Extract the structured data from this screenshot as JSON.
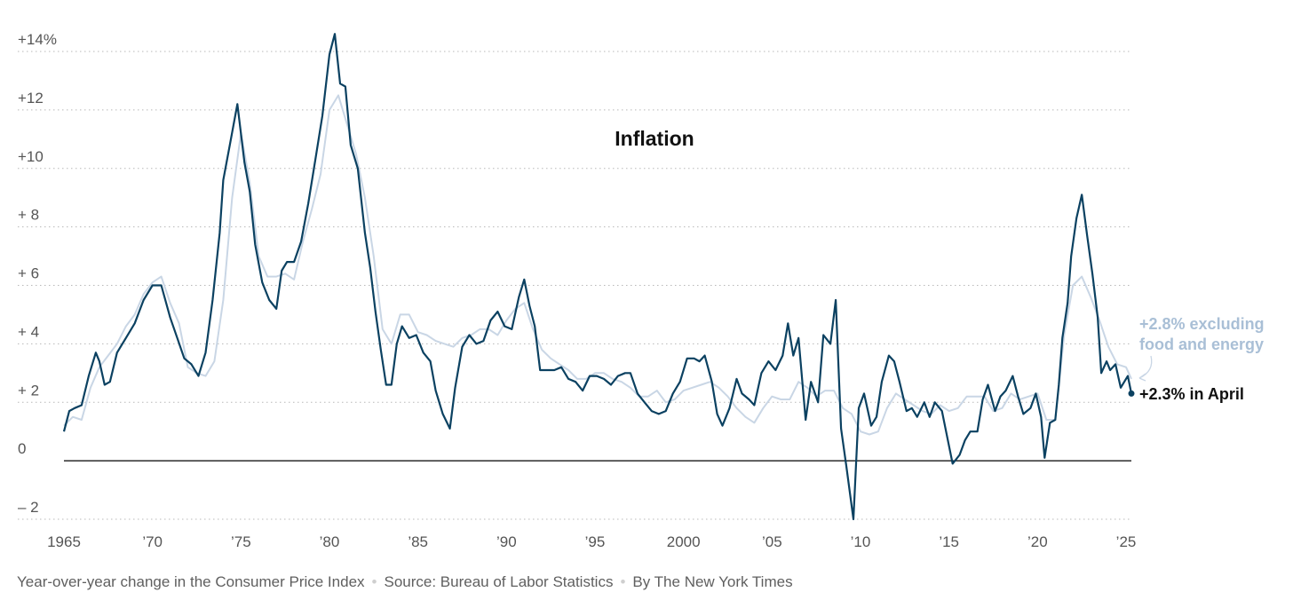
{
  "chart_data": {
    "type": "line",
    "title": "Inflation",
    "xlabel": "",
    "ylabel": "",
    "x_ticks": [
      "1965",
      "’70",
      "’75",
      "’80",
      "’85",
      "’90",
      "’95",
      "2000",
      "’05",
      "’10",
      "’15",
      "’20",
      "’25"
    ],
    "x_tick_years": [
      1965,
      1970,
      1975,
      1980,
      1985,
      1990,
      1995,
      2000,
      2005,
      2010,
      2015,
      2020,
      2025
    ],
    "xlim": [
      1965,
      2025.3
    ],
    "y_ticks": [
      {
        "value": 14,
        "label": "+14%"
      },
      {
        "value": 12,
        "label": "+12"
      },
      {
        "value": 10,
        "label": "+10"
      },
      {
        "value": 8,
        "label": "+ 8"
      },
      {
        "value": 6,
        "label": "+ 6"
      },
      {
        "value": 4,
        "label": "+ 4"
      },
      {
        "value": 2,
        "label": "+ 2"
      },
      {
        "value": 0,
        "label": "0"
      },
      {
        "value": -2,
        "label": "– 2"
      }
    ],
    "ylim": [
      -2,
      14.5
    ],
    "grid": true,
    "series": [
      {
        "name": "core",
        "color": "#c9d6e5",
        "points": [
          [
            1965.0,
            1.2
          ],
          [
            1965.5,
            1.5
          ],
          [
            1966.0,
            1.4
          ],
          [
            1966.5,
            2.5
          ],
          [
            1967.0,
            3.2
          ],
          [
            1967.5,
            3.6
          ],
          [
            1968.0,
            4.0
          ],
          [
            1968.5,
            4.6
          ],
          [
            1969.0,
            5.0
          ],
          [
            1969.5,
            5.7
          ],
          [
            1970.0,
            6.1
          ],
          [
            1970.5,
            6.3
          ],
          [
            1971.0,
            5.4
          ],
          [
            1971.5,
            4.7
          ],
          [
            1972.0,
            3.2
          ],
          [
            1972.5,
            3.0
          ],
          [
            1973.0,
            2.9
          ],
          [
            1973.5,
            3.4
          ],
          [
            1974.0,
            5.5
          ],
          [
            1974.5,
            9.0
          ],
          [
            1975.0,
            11.2
          ],
          [
            1975.5,
            9.5
          ],
          [
            1976.0,
            7.0
          ],
          [
            1976.5,
            6.3
          ],
          [
            1977.0,
            6.3
          ],
          [
            1977.5,
            6.4
          ],
          [
            1978.0,
            6.2
          ],
          [
            1978.5,
            7.5
          ],
          [
            1979.0,
            8.6
          ],
          [
            1979.5,
            9.8
          ],
          [
            1980.0,
            12.0
          ],
          [
            1980.5,
            12.5
          ],
          [
            1981.0,
            11.5
          ],
          [
            1981.5,
            10.5
          ],
          [
            1982.0,
            9.0
          ],
          [
            1982.5,
            7.0
          ],
          [
            1983.0,
            4.5
          ],
          [
            1983.5,
            4.0
          ],
          [
            1984.0,
            5.0
          ],
          [
            1984.5,
            5.0
          ],
          [
            1985.0,
            4.4
          ],
          [
            1985.5,
            4.3
          ],
          [
            1986.0,
            4.1
          ],
          [
            1986.5,
            4.0
          ],
          [
            1987.0,
            3.9
          ],
          [
            1987.5,
            4.2
          ],
          [
            1988.0,
            4.3
          ],
          [
            1988.5,
            4.5
          ],
          [
            1989.0,
            4.5
          ],
          [
            1989.5,
            4.3
          ],
          [
            1990.0,
            4.8
          ],
          [
            1990.5,
            5.2
          ],
          [
            1991.0,
            5.4
          ],
          [
            1991.5,
            4.5
          ],
          [
            1992.0,
            3.8
          ],
          [
            1992.5,
            3.5
          ],
          [
            1993.0,
            3.3
          ],
          [
            1993.5,
            3.1
          ],
          [
            1994.0,
            2.8
          ],
          [
            1994.5,
            2.8
          ],
          [
            1995.0,
            3.0
          ],
          [
            1995.5,
            3.0
          ],
          [
            1996.0,
            2.8
          ],
          [
            1996.5,
            2.7
          ],
          [
            1997.0,
            2.5
          ],
          [
            1997.5,
            2.2
          ],
          [
            1998.0,
            2.2
          ],
          [
            1998.5,
            2.4
          ],
          [
            1999.0,
            2.0
          ],
          [
            1999.5,
            2.1
          ],
          [
            2000.0,
            2.4
          ],
          [
            2000.5,
            2.5
          ],
          [
            2001.0,
            2.6
          ],
          [
            2001.5,
            2.7
          ],
          [
            2002.0,
            2.5
          ],
          [
            2002.5,
            2.2
          ],
          [
            2003.0,
            1.8
          ],
          [
            2003.5,
            1.5
          ],
          [
            2004.0,
            1.3
          ],
          [
            2004.5,
            1.8
          ],
          [
            2005.0,
            2.2
          ],
          [
            2005.5,
            2.1
          ],
          [
            2006.0,
            2.1
          ],
          [
            2006.5,
            2.7
          ],
          [
            2007.0,
            2.5
          ],
          [
            2007.5,
            2.2
          ],
          [
            2008.0,
            2.4
          ],
          [
            2008.5,
            2.4
          ],
          [
            2009.0,
            1.8
          ],
          [
            2009.5,
            1.6
          ],
          [
            2010.0,
            1.0
          ],
          [
            2010.5,
            0.9
          ],
          [
            2011.0,
            1.0
          ],
          [
            2011.5,
            1.8
          ],
          [
            2012.0,
            2.3
          ],
          [
            2012.5,
            2.1
          ],
          [
            2013.0,
            1.9
          ],
          [
            2013.5,
            1.7
          ],
          [
            2014.0,
            1.6
          ],
          [
            2014.5,
            1.9
          ],
          [
            2015.0,
            1.7
          ],
          [
            2015.5,
            1.8
          ],
          [
            2016.0,
            2.2
          ],
          [
            2016.5,
            2.2
          ],
          [
            2017.0,
            2.2
          ],
          [
            2017.5,
            1.7
          ],
          [
            2018.0,
            1.8
          ],
          [
            2018.5,
            2.3
          ],
          [
            2019.0,
            2.1
          ],
          [
            2019.5,
            2.2
          ],
          [
            2020.0,
            2.3
          ],
          [
            2020.5,
            1.4
          ],
          [
            2021.0,
            1.4
          ],
          [
            2021.5,
            4.3
          ],
          [
            2022.0,
            6.0
          ],
          [
            2022.5,
            6.3
          ],
          [
            2023.0,
            5.6
          ],
          [
            2023.5,
            4.8
          ],
          [
            2024.0,
            3.9
          ],
          [
            2024.5,
            3.3
          ],
          [
            2025.0,
            3.2
          ],
          [
            2025.3,
            2.8
          ]
        ]
      },
      {
        "name": "headline",
        "color": "#0b4161",
        "points": [
          [
            1965.0,
            1.0
          ],
          [
            1965.3,
            1.7
          ],
          [
            1965.6,
            1.8
          ],
          [
            1966.0,
            1.9
          ],
          [
            1966.4,
            2.9
          ],
          [
            1966.8,
            3.7
          ],
          [
            1967.0,
            3.4
          ],
          [
            1967.3,
            2.6
          ],
          [
            1967.6,
            2.7
          ],
          [
            1968.0,
            3.7
          ],
          [
            1968.5,
            4.2
          ],
          [
            1969.0,
            4.7
          ],
          [
            1969.5,
            5.5
          ],
          [
            1970.0,
            6.0
          ],
          [
            1970.5,
            6.0
          ],
          [
            1971.0,
            4.9
          ],
          [
            1971.4,
            4.2
          ],
          [
            1971.8,
            3.5
          ],
          [
            1972.2,
            3.3
          ],
          [
            1972.6,
            2.9
          ],
          [
            1973.0,
            3.7
          ],
          [
            1973.4,
            5.5
          ],
          [
            1973.8,
            7.8
          ],
          [
            1974.0,
            9.6
          ],
          [
            1974.4,
            10.9
          ],
          [
            1974.8,
            12.2
          ],
          [
            1975.2,
            10.2
          ],
          [
            1975.5,
            9.2
          ],
          [
            1975.8,
            7.4
          ],
          [
            1976.2,
            6.1
          ],
          [
            1976.6,
            5.5
          ],
          [
            1977.0,
            5.2
          ],
          [
            1977.3,
            6.5
          ],
          [
            1977.6,
            6.8
          ],
          [
            1978.0,
            6.8
          ],
          [
            1978.4,
            7.5
          ],
          [
            1978.8,
            8.8
          ],
          [
            1979.2,
            10.3
          ],
          [
            1979.6,
            11.8
          ],
          [
            1980.0,
            13.9
          ],
          [
            1980.3,
            14.6
          ],
          [
            1980.6,
            12.9
          ],
          [
            1980.9,
            12.8
          ],
          [
            1981.2,
            10.8
          ],
          [
            1981.6,
            10.0
          ],
          [
            1982.0,
            7.8
          ],
          [
            1982.3,
            6.6
          ],
          [
            1982.6,
            5.1
          ],
          [
            1982.9,
            3.8
          ],
          [
            1983.2,
            2.6
          ],
          [
            1983.5,
            2.6
          ],
          [
            1983.8,
            4.0
          ],
          [
            1984.1,
            4.6
          ],
          [
            1984.5,
            4.2
          ],
          [
            1984.9,
            4.3
          ],
          [
            1985.3,
            3.7
          ],
          [
            1985.7,
            3.4
          ],
          [
            1986.0,
            2.4
          ],
          [
            1986.4,
            1.6
          ],
          [
            1986.8,
            1.1
          ],
          [
            1987.1,
            2.5
          ],
          [
            1987.5,
            3.9
          ],
          [
            1987.9,
            4.3
          ],
          [
            1988.3,
            4.0
          ],
          [
            1988.7,
            4.1
          ],
          [
            1989.1,
            4.8
          ],
          [
            1989.5,
            5.1
          ],
          [
            1989.9,
            4.6
          ],
          [
            1990.3,
            4.5
          ],
          [
            1990.7,
            5.6
          ],
          [
            1991.0,
            6.2
          ],
          [
            1991.3,
            5.3
          ],
          [
            1991.6,
            4.6
          ],
          [
            1991.9,
            3.1
          ],
          [
            1992.3,
            3.1
          ],
          [
            1992.7,
            3.1
          ],
          [
            1993.1,
            3.2
          ],
          [
            1993.5,
            2.8
          ],
          [
            1993.9,
            2.7
          ],
          [
            1994.3,
            2.4
          ],
          [
            1994.7,
            2.9
          ],
          [
            1995.1,
            2.9
          ],
          [
            1995.5,
            2.8
          ],
          [
            1995.9,
            2.6
          ],
          [
            1996.3,
            2.9
          ],
          [
            1996.7,
            3.0
          ],
          [
            1997.0,
            3.0
          ],
          [
            1997.4,
            2.3
          ],
          [
            1997.8,
            2.0
          ],
          [
            1998.2,
            1.7
          ],
          [
            1998.6,
            1.6
          ],
          [
            1999.0,
            1.7
          ],
          [
            1999.4,
            2.3
          ],
          [
            1999.8,
            2.7
          ],
          [
            2000.2,
            3.5
          ],
          [
            2000.6,
            3.5
          ],
          [
            2000.9,
            3.4
          ],
          [
            2001.2,
            3.6
          ],
          [
            2001.6,
            2.7
          ],
          [
            2001.9,
            1.6
          ],
          [
            2002.2,
            1.2
          ],
          [
            2002.6,
            1.8
          ],
          [
            2003.0,
            2.8
          ],
          [
            2003.3,
            2.3
          ],
          [
            2003.7,
            2.1
          ],
          [
            2004.0,
            1.9
          ],
          [
            2004.4,
            3.0
          ],
          [
            2004.8,
            3.4
          ],
          [
            2005.2,
            3.1
          ],
          [
            2005.6,
            3.6
          ],
          [
            2005.9,
            4.7
          ],
          [
            2006.2,
            3.6
          ],
          [
            2006.5,
            4.2
          ],
          [
            2006.9,
            1.4
          ],
          [
            2007.2,
            2.7
          ],
          [
            2007.6,
            2.0
          ],
          [
            2007.9,
            4.3
          ],
          [
            2008.3,
            4.0
          ],
          [
            2008.6,
            5.5
          ],
          [
            2008.9,
            1.1
          ],
          [
            2009.2,
            -0.2
          ],
          [
            2009.6,
            -2.0
          ],
          [
            2009.9,
            1.8
          ],
          [
            2010.2,
            2.3
          ],
          [
            2010.6,
            1.2
          ],
          [
            2010.9,
            1.5
          ],
          [
            2011.2,
            2.7
          ],
          [
            2011.6,
            3.6
          ],
          [
            2011.9,
            3.4
          ],
          [
            2012.2,
            2.7
          ],
          [
            2012.6,
            1.7
          ],
          [
            2012.9,
            1.8
          ],
          [
            2013.2,
            1.5
          ],
          [
            2013.6,
            2.0
          ],
          [
            2013.9,
            1.5
          ],
          [
            2014.2,
            2.0
          ],
          [
            2014.6,
            1.7
          ],
          [
            2014.9,
            0.8
          ],
          [
            2015.2,
            -0.1
          ],
          [
            2015.6,
            0.2
          ],
          [
            2015.9,
            0.7
          ],
          [
            2016.2,
            1.0
          ],
          [
            2016.6,
            1.0
          ],
          [
            2016.9,
            2.1
          ],
          [
            2017.2,
            2.6
          ],
          [
            2017.6,
            1.7
          ],
          [
            2017.9,
            2.2
          ],
          [
            2018.2,
            2.4
          ],
          [
            2018.6,
            2.9
          ],
          [
            2018.9,
            2.2
          ],
          [
            2019.2,
            1.6
          ],
          [
            2019.6,
            1.8
          ],
          [
            2019.9,
            2.3
          ],
          [
            2020.2,
            1.5
          ],
          [
            2020.4,
            0.1
          ],
          [
            2020.7,
            1.3
          ],
          [
            2021.0,
            1.4
          ],
          [
            2021.2,
            2.6
          ],
          [
            2021.4,
            4.2
          ],
          [
            2021.7,
            5.4
          ],
          [
            2021.9,
            7.0
          ],
          [
            2022.2,
            8.3
          ],
          [
            2022.5,
            9.1
          ],
          [
            2022.8,
            7.7
          ],
          [
            2023.1,
            6.4
          ],
          [
            2023.4,
            4.9
          ],
          [
            2023.6,
            3.0
          ],
          [
            2023.9,
            3.4
          ],
          [
            2024.1,
            3.1
          ],
          [
            2024.4,
            3.3
          ],
          [
            2024.7,
            2.5
          ],
          [
            2024.9,
            2.7
          ],
          [
            2025.1,
            2.9
          ],
          [
            2025.3,
            2.3
          ]
        ]
      }
    ],
    "annotations": [
      {
        "text": "+2.8% excluding",
        "series": "core"
      },
      {
        "text": "food and energy",
        "series": "core"
      },
      {
        "text": "+2.3% in April",
        "series": "headline"
      }
    ]
  },
  "footer": {
    "description": "Year-over-year change in the Consumer Price Index",
    "source": "Source: Bureau of Labor Statistics",
    "credit": "By The New York Times",
    "separator": "•"
  }
}
